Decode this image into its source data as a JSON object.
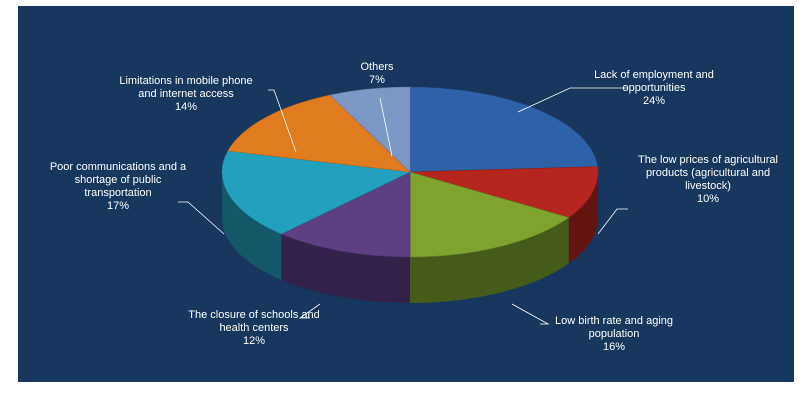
{
  "chart_data": {
    "type": "pie",
    "title": "",
    "legend": "none (labels beside slices)",
    "colors": {
      "background": "#17375e",
      "label_text": "#ffffff",
      "leader_line": "#ffffff"
    },
    "slices": [
      {
        "label_lines": [
          "Lack of employment  and",
          "opportunities"
        ],
        "value_text": "24%",
        "value": 24,
        "color": "#2e62a8"
      },
      {
        "label_lines": [
          "The low prices of agricultural",
          "products (agricultural and",
          "livestock)"
        ],
        "value_text": "10%",
        "value": 10,
        "color": "#b5261f"
      },
      {
        "label_lines": [
          "Low birth rate and aging",
          "population"
        ],
        "value_text": "16%",
        "value": 16,
        "color": "#7fa32e"
      },
      {
        "label_lines": [
          "The closure of schools and",
          "health centers"
        ],
        "value_text": "12%",
        "value": 12,
        "color": "#5d3f86"
      },
      {
        "label_lines": [
          "Poor communications and a",
          "shortage of public",
          "transportation"
        ],
        "value_text": "17%",
        "value": 17,
        "color": "#23a0be"
      },
      {
        "label_lines": [
          "Limitations in mobile phone",
          "and internet access"
        ],
        "value_text": "14%",
        "value": 14,
        "color": "#e17c1e"
      },
      {
        "label_lines": [
          "Others"
        ],
        "value_text": "7%",
        "value": 7,
        "color": "#7d97c6"
      }
    ]
  }
}
